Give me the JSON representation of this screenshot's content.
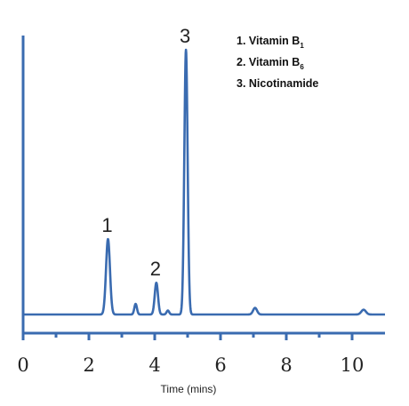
{
  "chart_data": {
    "type": "line",
    "title": "",
    "xlabel": "Time (mins)",
    "ylabel": "",
    "xlim": [
      0,
      11
    ],
    "ylim": [
      0,
      100
    ],
    "x_ticks": [
      0,
      2,
      4,
      6,
      8,
      10
    ],
    "x_tick_labels": [
      "0",
      "2",
      "4",
      "6",
      "8",
      "10"
    ],
    "x_minor_ticks": [
      1,
      3,
      5,
      7,
      9
    ],
    "grid": false,
    "line_color": "#3a6bb0",
    "axis_color": "#3a6bb0",
    "baseline": 0,
    "peaks": [
      {
        "label": "1",
        "x": 2.58,
        "height": 28.5,
        "width": 0.06
      },
      {
        "label": "",
        "x": 3.42,
        "height": 4.0,
        "width": 0.04
      },
      {
        "label": "2",
        "x": 4.05,
        "height": 12.0,
        "width": 0.05
      },
      {
        "label": "",
        "x": 4.4,
        "height": 1.5,
        "width": 0.04
      },
      {
        "label": "3",
        "x": 4.95,
        "height": 100.0,
        "width": 0.05
      },
      {
        "label": "",
        "x": 7.05,
        "height": 2.5,
        "width": 0.06
      },
      {
        "label": "",
        "x": 10.35,
        "height": 1.8,
        "width": 0.07
      }
    ],
    "legend": [
      {
        "text": "1. Vitamin B",
        "sub": "1"
      },
      {
        "text": "2. Vitamin B",
        "sub": "6"
      },
      {
        "text": "3. Nicotinamide",
        "sub": ""
      }
    ]
  }
}
